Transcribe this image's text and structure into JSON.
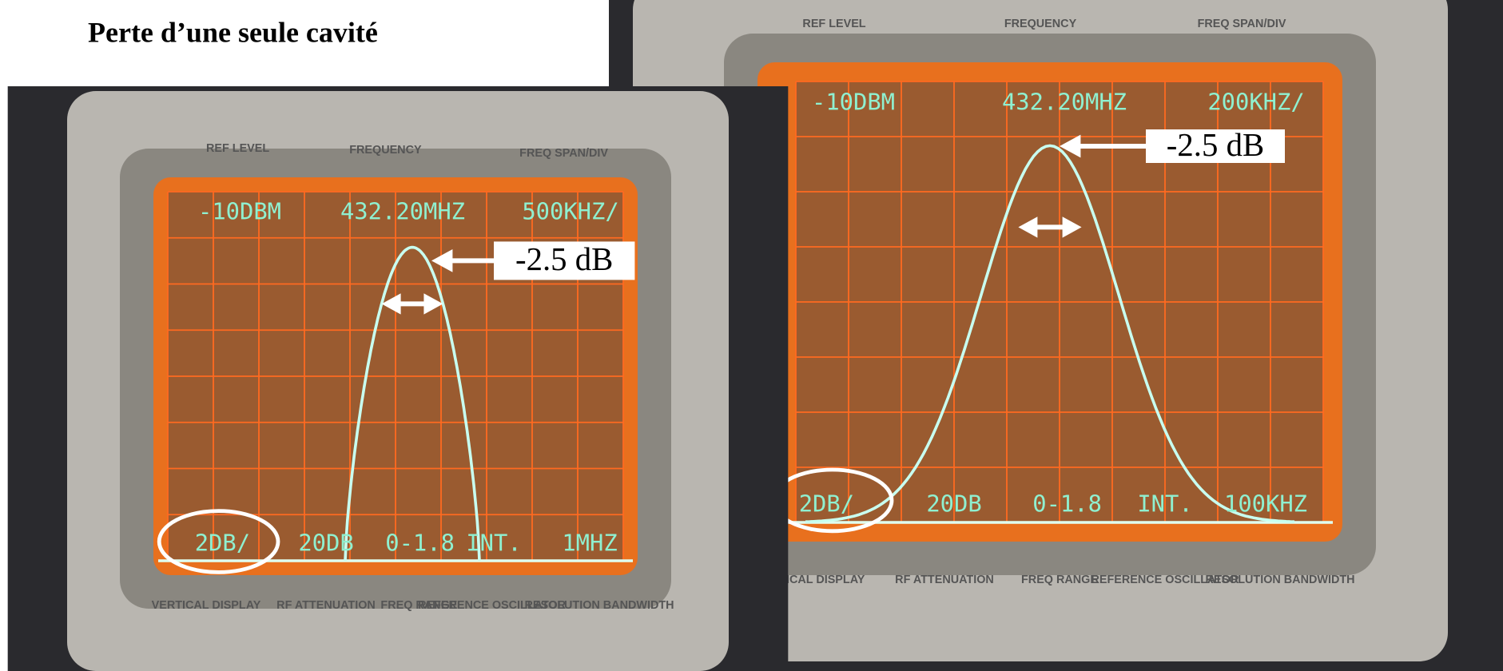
{
  "title": "Perte d’une seule cavité",
  "panels": [
    {
      "readouts_top": [
        "-10DBM",
        "432.20MHZ",
        "500KHZ/"
      ],
      "readouts_bottom": [
        "2DB/",
        "20DB",
        "0-1.8",
        "INT.",
        "1MHZ"
      ],
      "bezel_top": [
        "REF LEVEL",
        "FREQUENCY",
        "FREQ SPAN/DIV"
      ],
      "bezel_bottom": [
        "VERTICAL DISPLAY",
        "RF ATTENUATION",
        "FREQ RANGE",
        "REFERENCE OSCILLATOR",
        "RESOLUTION BANDWIDTH"
      ],
      "annotation": "-2.5 dB"
    },
    {
      "readouts_top": [
        "-10DBM",
        "432.20MHZ",
        "200KHZ/"
      ],
      "readouts_bottom": [
        "2DB/",
        "20DB",
        "0-1.8",
        "INT.",
        "100KHZ"
      ],
      "bezel_top": [
        "REF LEVEL",
        "FREQUENCY",
        "FREQ SPAN/DIV"
      ],
      "bezel_bottom": [
        "VERTICAL DISPLAY",
        "RF ATTENUATION",
        "FREQ RANGE",
        "REFERENCE OSCILLATOR",
        "RESOLUTION BANDWIDTH"
      ],
      "annotation": "-2.5 dB"
    }
  ]
}
